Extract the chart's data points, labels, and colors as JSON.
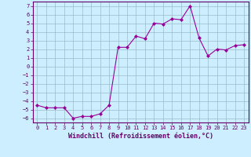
{
  "x": [
    0,
    1,
    2,
    3,
    4,
    5,
    6,
    7,
    8,
    9,
    10,
    11,
    12,
    13,
    14,
    15,
    16,
    17,
    18,
    19,
    20,
    21,
    22,
    23
  ],
  "y": [
    -4.5,
    -4.8,
    -4.8,
    -4.8,
    -6.0,
    -5.8,
    -5.8,
    -5.5,
    -4.5,
    2.2,
    2.2,
    3.5,
    3.2,
    5.0,
    4.9,
    5.5,
    5.4,
    7.0,
    3.3,
    1.2,
    2.0,
    1.9,
    2.4,
    2.5
  ],
  "line_color": "#990099",
  "marker": "D",
  "marker_size": 2.0,
  "bg_color": "#cceeff",
  "grid_color": "#99bbcc",
  "xlabel": "Windchill (Refroidissement éolien,°C)",
  "xlim": [
    -0.5,
    23.5
  ],
  "ylim": [
    -6.5,
    7.5
  ],
  "yticks": [
    -6,
    -5,
    -4,
    -3,
    -2,
    -1,
    0,
    1,
    2,
    3,
    4,
    5,
    6,
    7
  ],
  "xticks": [
    0,
    1,
    2,
    3,
    4,
    5,
    6,
    7,
    8,
    9,
    10,
    11,
    12,
    13,
    14,
    15,
    16,
    17,
    18,
    19,
    20,
    21,
    22,
    23
  ],
  "label_color": "#660066",
  "tick_color": "#660066",
  "spine_color": "#660066",
  "tick_fontsize": 5.0,
  "xlabel_fontsize": 6.0
}
